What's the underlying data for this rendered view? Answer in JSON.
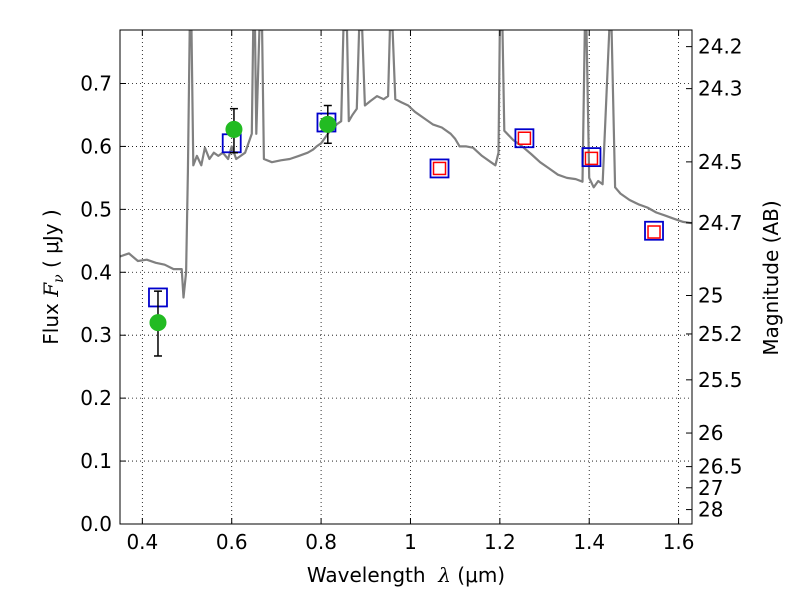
{
  "chart_data": {
    "type": "scatter",
    "xlabel": {
      "prefix": "Wavelength  ",
      "symbol": "λ",
      "unit": " (μm)"
    },
    "ylabel": {
      "prefix": "Flux  ",
      "symbol": "F",
      "sub": "ν",
      "unit": "  ( μJy )"
    },
    "y2label": "Magnitude (AB)",
    "xlim": [
      0.35,
      1.63
    ],
    "ylim": [
      0.0,
      0.785
    ],
    "grid": true,
    "x_ticks": [
      {
        "value": 0.4,
        "label": "0.4"
      },
      {
        "value": 0.6,
        "label": "0.6"
      },
      {
        "value": 0.8,
        "label": "0.8"
      },
      {
        "value": 1.0,
        "label": "1"
      },
      {
        "value": 1.2,
        "label": "1.2"
      },
      {
        "value": 1.4,
        "label": "1.4"
      },
      {
        "value": 1.6,
        "label": "1.6"
      }
    ],
    "y_ticks": [
      {
        "value": 0.0,
        "label": "0.0"
      },
      {
        "value": 0.1,
        "label": "0.1"
      },
      {
        "value": 0.2,
        "label": "0.2"
      },
      {
        "value": 0.3,
        "label": "0.3"
      },
      {
        "value": 0.4,
        "label": "0.4"
      },
      {
        "value": 0.5,
        "label": "0.5"
      },
      {
        "value": 0.6,
        "label": "0.6"
      },
      {
        "value": 0.7,
        "label": "0.7"
      }
    ],
    "y2_ticks": [
      {
        "value": 24.2,
        "label": "24.2"
      },
      {
        "value": 24.3,
        "label": "24.3"
      },
      {
        "value": 24.5,
        "label": "24.5"
      },
      {
        "value": 24.7,
        "label": "24.7"
      },
      {
        "value": 25.0,
        "label": "25"
      },
      {
        "value": 25.2,
        "label": "25.2"
      },
      {
        "value": 25.5,
        "label": "25.5"
      },
      {
        "value": 26.0,
        "label": "26"
      },
      {
        "value": 26.5,
        "label": "26.5"
      },
      {
        "value": 27.0,
        "label": "27"
      },
      {
        "value": 28.0,
        "label": "28"
      }
    ],
    "series": [
      {
        "kind": "line",
        "color": "#808080",
        "points": [
          [
            0.35,
            0.425
          ],
          [
            0.37,
            0.43
          ],
          [
            0.39,
            0.418
          ],
          [
            0.41,
            0.42
          ],
          [
            0.43,
            0.415
          ],
          [
            0.45,
            0.412
          ],
          [
            0.47,
            0.405
          ],
          [
            0.488,
            0.405
          ],
          [
            0.492,
            0.36
          ],
          [
            0.498,
            0.4
          ],
          [
            0.502,
            0.56
          ],
          [
            0.506,
            0.785
          ],
          [
            0.51,
            0.785
          ],
          [
            0.514,
            0.57
          ],
          [
            0.522,
            0.585
          ],
          [
            0.532,
            0.57
          ],
          [
            0.54,
            0.598
          ],
          [
            0.55,
            0.58
          ],
          [
            0.56,
            0.59
          ],
          [
            0.57,
            0.585
          ],
          [
            0.58,
            0.59
          ],
          [
            0.592,
            0.58
          ],
          [
            0.6,
            0.6
          ],
          [
            0.61,
            0.58
          ],
          [
            0.62,
            0.585
          ],
          [
            0.63,
            0.59
          ],
          [
            0.645,
            0.62
          ],
          [
            0.648,
            0.785
          ],
          [
            0.652,
            0.785
          ],
          [
            0.655,
            0.62
          ],
          [
            0.662,
            0.785
          ],
          [
            0.668,
            0.785
          ],
          [
            0.672,
            0.58
          ],
          [
            0.69,
            0.575
          ],
          [
            0.71,
            0.578
          ],
          [
            0.73,
            0.58
          ],
          [
            0.75,
            0.585
          ],
          [
            0.77,
            0.59
          ],
          [
            0.782,
            0.595
          ],
          [
            0.79,
            0.6
          ],
          [
            0.8,
            0.605
          ],
          [
            0.81,
            0.615
          ],
          [
            0.82,
            0.625
          ],
          [
            0.835,
            0.635
          ],
          [
            0.845,
            0.64
          ],
          [
            0.85,
            0.785
          ],
          [
            0.858,
            0.785
          ],
          [
            0.862,
            0.64
          ],
          [
            0.87,
            0.65
          ],
          [
            0.88,
            0.66
          ],
          [
            0.885,
            0.785
          ],
          [
            0.892,
            0.785
          ],
          [
            0.898,
            0.665
          ],
          [
            0.91,
            0.672
          ],
          [
            0.925,
            0.68
          ],
          [
            0.94,
            0.675
          ],
          [
            0.95,
            0.68
          ],
          [
            0.954,
            0.785
          ],
          [
            0.96,
            0.785
          ],
          [
            0.966,
            0.675
          ],
          [
            0.98,
            0.67
          ],
          [
            0.995,
            0.665
          ],
          [
            1.01,
            0.655
          ],
          [
            1.03,
            0.645
          ],
          [
            1.05,
            0.635
          ],
          [
            1.07,
            0.63
          ],
          [
            1.09,
            0.62
          ],
          [
            1.1,
            0.612
          ],
          [
            1.11,
            0.6
          ],
          [
            1.125,
            0.6
          ],
          [
            1.14,
            0.598
          ],
          [
            1.16,
            0.585
          ],
          [
            1.18,
            0.575
          ],
          [
            1.19,
            0.57
          ],
          [
            1.197,
            0.59
          ],
          [
            1.2,
            0.785
          ],
          [
            1.206,
            0.785
          ],
          [
            1.21,
            0.625
          ],
          [
            1.23,
            0.61
          ],
          [
            1.25,
            0.6
          ],
          [
            1.27,
            0.588
          ],
          [
            1.29,
            0.575
          ],
          [
            1.31,
            0.565
          ],
          [
            1.33,
            0.555
          ],
          [
            1.35,
            0.55
          ],
          [
            1.37,
            0.548
          ],
          [
            1.385,
            0.544
          ],
          [
            1.39,
            0.785
          ],
          [
            1.394,
            0.785
          ],
          [
            1.4,
            0.55
          ],
          [
            1.41,
            0.535
          ],
          [
            1.42,
            0.545
          ],
          [
            1.43,
            0.54
          ],
          [
            1.445,
            0.785
          ],
          [
            1.45,
            0.785
          ],
          [
            1.458,
            0.535
          ],
          [
            1.47,
            0.525
          ],
          [
            1.49,
            0.515
          ],
          [
            1.51,
            0.508
          ],
          [
            1.53,
            0.503
          ],
          [
            1.55,
            0.495
          ],
          [
            1.57,
            0.49
          ],
          [
            1.59,
            0.485
          ],
          [
            1.61,
            0.48
          ],
          [
            1.63,
            0.478
          ]
        ]
      },
      {
        "kind": "model-photometry",
        "color": "#0000cc",
        "marker": "open-square",
        "points": [
          [
            0.435,
            0.36
          ],
          [
            0.6,
            0.605
          ],
          [
            0.812,
            0.638
          ],
          [
            1.065,
            0.565
          ],
          [
            1.255,
            0.613
          ],
          [
            1.405,
            0.583
          ],
          [
            1.545,
            0.466
          ]
        ]
      },
      {
        "kind": "catalog-photometry",
        "color": "#ff0000",
        "marker": "open-square",
        "points": [
          [
            1.065,
            0.565
          ],
          [
            1.255,
            0.613
          ],
          [
            1.405,
            0.581
          ],
          [
            1.545,
            0.464
          ]
        ]
      },
      {
        "kind": "observed",
        "color": "#22bb22",
        "marker": "filled-circle",
        "points": [
          {
            "x": 0.435,
            "y": 0.32,
            "yerr_lo": 0.267,
            "yerr_hi": 0.37
          },
          {
            "x": 0.605,
            "y": 0.627,
            "yerr_lo": 0.59,
            "yerr_hi": 0.66
          },
          {
            "x": 0.815,
            "y": 0.635,
            "yerr_lo": 0.605,
            "yerr_hi": 0.665
          }
        ]
      }
    ]
  }
}
